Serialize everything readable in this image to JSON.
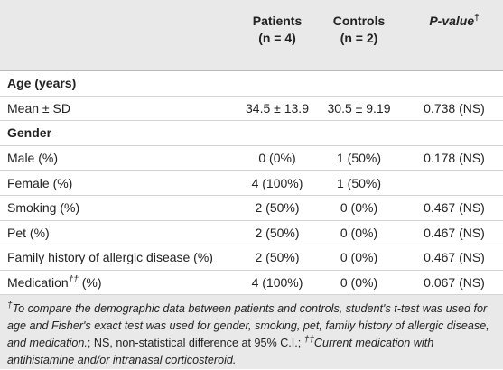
{
  "table": {
    "header": [
      {
        "title": "Patients",
        "sub": "(n = 4)"
      },
      {
        "title": "Controls",
        "sub": "(n = 2)"
      },
      {
        "title": "P-value",
        "mark": "†"
      }
    ],
    "rows": [
      {
        "section": "Age (years)"
      },
      {
        "label": "Mean ± SD",
        "values": [
          "34.5 ± 13.9",
          "30.5 ± 9.19",
          "0.738 (NS)"
        ]
      },
      {
        "section": "Gender"
      },
      {
        "label": "Male (%)",
        "values": [
          "0 (0%)",
          "1 (50%)",
          "0.178 (NS)"
        ]
      },
      {
        "label": "Female (%)",
        "values": [
          "4 (100%)",
          "1 (50%)",
          ""
        ]
      },
      {
        "label": "Smoking (%)",
        "values": [
          "2 (50%)",
          "0 (0%)",
          "0.467 (NS)"
        ]
      },
      {
        "label": "Pet (%)",
        "values": [
          "2 (50%)",
          "0 (0%)",
          "0.467 (NS)"
        ]
      },
      {
        "label": "Family history of allergic disease (%)",
        "values": [
          "2 (50%)",
          "0 (0%)",
          "0.467 (NS)"
        ]
      },
      {
        "label": "Medication",
        "mark": "††",
        "unit": " (%)",
        "values": [
          "4 (100%)",
          "0 (0%)",
          "0.067 (NS)"
        ]
      }
    ],
    "footnote": [
      "†",
      "To compare the demographic data between patients and controls, student's t-test was used for age and Fisher's exact test was used for gender, smoking, pet, family history of allergic disease, and medication.",
      "; NS, non-statistical difference at 95% C.I.; ",
      "††",
      "Current medication with antihistamine and/or intranasal corticosteroid."
    ]
  }
}
